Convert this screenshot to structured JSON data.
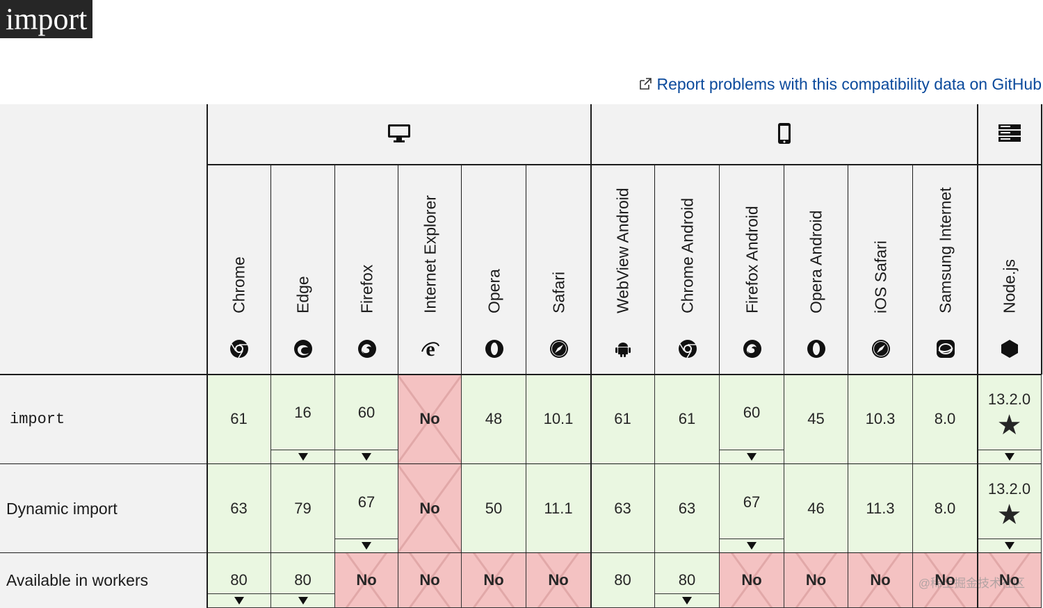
{
  "page": {
    "title": "import",
    "report_link": "Report problems with this compatibility data on GitHub",
    "watermark": "@稀土掘金技术社区"
  },
  "platforms": [
    {
      "name": "desktop",
      "icon": "desktop-icon"
    },
    {
      "name": "mobile",
      "icon": "mobile-icon"
    },
    {
      "name": "server",
      "icon": "server-icon"
    }
  ],
  "browsers": [
    {
      "name": "Chrome",
      "icon": "chrome-icon"
    },
    {
      "name": "Edge",
      "icon": "edge-icon"
    },
    {
      "name": "Firefox",
      "icon": "firefox-icon"
    },
    {
      "name": "Internet Explorer",
      "icon": "ie-icon"
    },
    {
      "name": "Opera",
      "icon": "opera-icon"
    },
    {
      "name": "Safari",
      "icon": "safari-icon"
    },
    {
      "name": "WebView Android",
      "icon": "android-icon"
    },
    {
      "name": "Chrome Android",
      "icon": "chrome-icon"
    },
    {
      "name": "Firefox Android",
      "icon": "firefox-icon"
    },
    {
      "name": "Opera Android",
      "icon": "opera-icon"
    },
    {
      "name": "iOS Safari",
      "icon": "safari-icon"
    },
    {
      "name": "Samsung Internet",
      "icon": "samsung-icon"
    },
    {
      "name": "Node.js",
      "icon": "nodejs-icon"
    }
  ],
  "features": [
    {
      "name": "import",
      "code": true,
      "cells": [
        {
          "text": "61",
          "status": "yes",
          "more": false
        },
        {
          "text": "16",
          "status": "yes",
          "more": true
        },
        {
          "text": "60",
          "status": "yes",
          "more": true
        },
        {
          "text": "No",
          "status": "no",
          "more": false
        },
        {
          "text": "48",
          "status": "yes",
          "more": false
        },
        {
          "text": "10.1",
          "status": "yes",
          "more": false
        },
        {
          "text": "61",
          "status": "yes",
          "more": false
        },
        {
          "text": "61",
          "status": "yes",
          "more": false
        },
        {
          "text": "60",
          "status": "yes",
          "more": true
        },
        {
          "text": "45",
          "status": "yes",
          "more": false
        },
        {
          "text": "10.3",
          "status": "yes",
          "more": false
        },
        {
          "text": "8.0",
          "status": "yes",
          "more": false
        },
        {
          "text": "13.2.0",
          "status": "yes",
          "more": true,
          "note": "★"
        }
      ]
    },
    {
      "name": "Dynamic import",
      "code": false,
      "cells": [
        {
          "text": "63",
          "status": "yes",
          "more": false
        },
        {
          "text": "79",
          "status": "yes",
          "more": false
        },
        {
          "text": "67",
          "status": "yes",
          "more": true
        },
        {
          "text": "No",
          "status": "no",
          "more": false
        },
        {
          "text": "50",
          "status": "yes",
          "more": false
        },
        {
          "text": "11.1",
          "status": "yes",
          "more": false
        },
        {
          "text": "63",
          "status": "yes",
          "more": false
        },
        {
          "text": "63",
          "status": "yes",
          "more": false
        },
        {
          "text": "67",
          "status": "yes",
          "more": true
        },
        {
          "text": "46",
          "status": "yes",
          "more": false
        },
        {
          "text": "11.3",
          "status": "yes",
          "more": false
        },
        {
          "text": "8.0",
          "status": "yes",
          "more": false
        },
        {
          "text": "13.2.0",
          "status": "yes",
          "more": true,
          "note": "★"
        }
      ]
    },
    {
      "name": "Available in workers",
      "code": false,
      "cells": [
        {
          "text": "80",
          "status": "yes",
          "more": true
        },
        {
          "text": "80",
          "status": "yes",
          "more": true
        },
        {
          "text": "No",
          "status": "no",
          "more": false
        },
        {
          "text": "No",
          "status": "no",
          "more": false
        },
        {
          "text": "No",
          "status": "no",
          "more": false
        },
        {
          "text": "No",
          "status": "no",
          "more": false
        },
        {
          "text": "80",
          "status": "yes",
          "more": false
        },
        {
          "text": "80",
          "status": "yes",
          "more": true
        },
        {
          "text": "No",
          "status": "no",
          "more": false
        },
        {
          "text": "No",
          "status": "no",
          "more": false
        },
        {
          "text": "No",
          "status": "no",
          "more": false
        },
        {
          "text": "No",
          "status": "no",
          "more": false
        },
        {
          "text": "No",
          "status": "no",
          "more": false
        }
      ]
    }
  ],
  "colors": {
    "supported": "#eaf7e1",
    "unsupported": "#f4c2c2",
    "link": "#0b4a9c",
    "header_bg": "#f2f2f2"
  }
}
